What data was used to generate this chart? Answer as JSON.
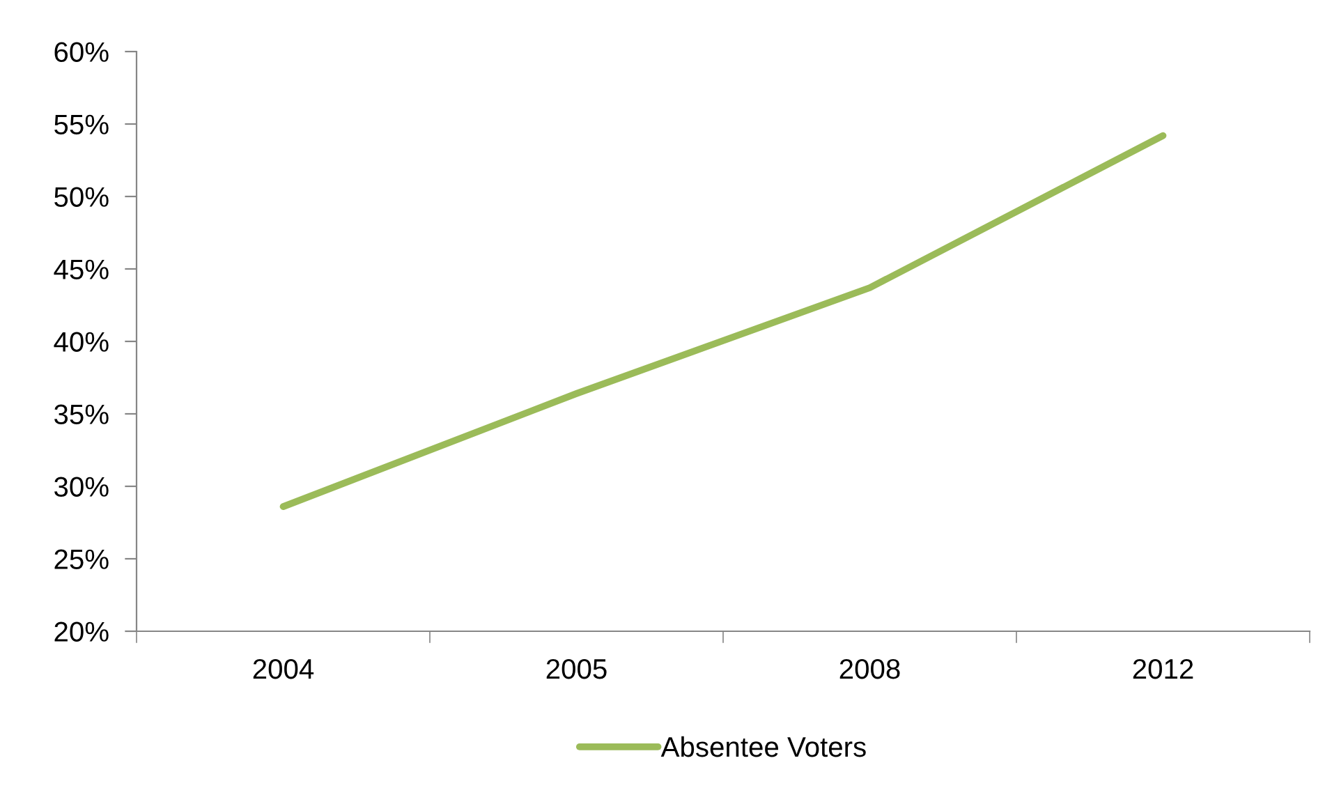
{
  "chart_data": {
    "type": "line",
    "categories": [
      "2004",
      "2005",
      "2008",
      "2012"
    ],
    "series": [
      {
        "name": "Absentee Voters",
        "color": "#9bbb59",
        "values": [
          28.6,
          36.4,
          43.7,
          54.2
        ]
      }
    ],
    "ylim": [
      20,
      60
    ],
    "yticks": [
      {
        "value": 20,
        "label": "20%"
      },
      {
        "value": 25,
        "label": "25%"
      },
      {
        "value": 30,
        "label": "30%"
      },
      {
        "value": 35,
        "label": "35%"
      },
      {
        "value": 40,
        "label": "40%"
      },
      {
        "value": 45,
        "label": "45%"
      },
      {
        "value": 50,
        "label": "50%"
      },
      {
        "value": 55,
        "label": "55%"
      },
      {
        "value": 60,
        "label": "60%"
      }
    ],
    "grid": false,
    "legend": "bottom",
    "marker": "none",
    "line_style": "solid"
  }
}
